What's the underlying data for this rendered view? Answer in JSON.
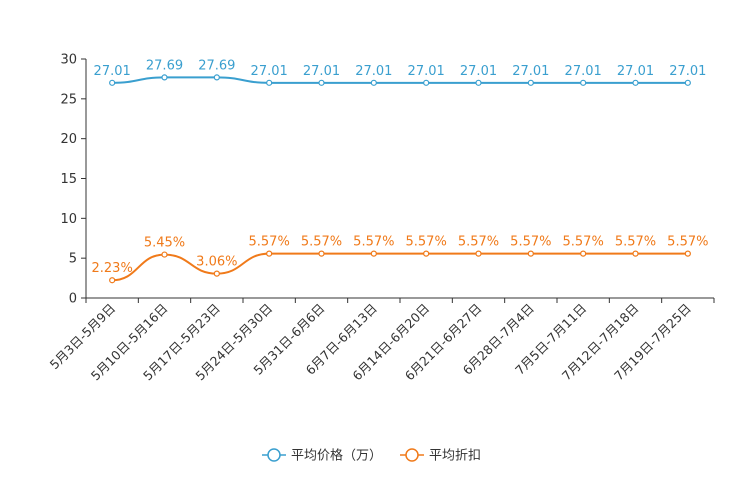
{
  "chart_data": {
    "type": "line",
    "title": "",
    "xlabel": "",
    "ylabel": "",
    "categories": [
      "5月3日-5月9日",
      "5月10日-5月16日",
      "5月17日-5月23日",
      "5月24日-5月30日",
      "5月31日-6月6日",
      "6月7日-6月13日",
      "6月14日-6月20日",
      "6月21日-6月27日",
      "6月28日-7月4日",
      "7月5日-7月11日",
      "7月12日-7月18日",
      "7月19日-7月25日"
    ],
    "ylim": [
      0,
      30
    ],
    "yticks": [
      0,
      5,
      10,
      15,
      20,
      25,
      30
    ],
    "grid": false,
    "legend_position": "bottom-center",
    "series": [
      {
        "name": "平均价格（万）",
        "color": "#3a9fcf",
        "values": [
          27.01,
          27.69,
          27.69,
          27.01,
          27.01,
          27.01,
          27.01,
          27.01,
          27.01,
          27.01,
          27.01,
          27.01
        ],
        "labels": [
          "27.01",
          "27.69",
          "27.69",
          "27.01",
          "27.01",
          "27.01",
          "27.01",
          "27.01",
          "27.01",
          "27.01",
          "27.01",
          "27.01"
        ]
      },
      {
        "name": "平均折扣",
        "color": "#f07a1a",
        "values": [
          2.23,
          5.45,
          3.06,
          5.57,
          5.57,
          5.57,
          5.57,
          5.57,
          5.57,
          5.57,
          5.57,
          5.57
        ],
        "labels": [
          "2.23%",
          "5.45%",
          "3.06%",
          "5.57%",
          "5.57%",
          "5.57%",
          "5.57%",
          "5.57%",
          "5.57%",
          "5.57%",
          "5.57%",
          "5.57%"
        ]
      }
    ]
  }
}
